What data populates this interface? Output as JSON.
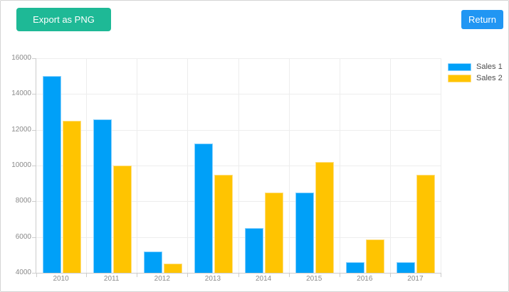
{
  "toolbar": {
    "export_label": "Export as PNG",
    "return_label": "Return"
  },
  "colors": {
    "export_button": "#1EB996",
    "return_button": "#2196F3",
    "series1": "#00A0F8",
    "series1_border": "#8AD2FE",
    "series2": "#FFC401",
    "series2_border": "#FFDF82",
    "grid": "#EDEDED",
    "axis": "#CCCCCC",
    "axis_label": "#8A8A8A",
    "legend_text": "#4C4C4C",
    "widget_border": "#D4D4D4"
  },
  "chart_data": {
    "type": "bar",
    "title": "",
    "xlabel": "",
    "ylabel": "",
    "categories": [
      "2010",
      "2011",
      "2012",
      "2013",
      "2014",
      "2015",
      "2016",
      "2017"
    ],
    "series": [
      {
        "name": "Sales 1",
        "color_key": "series1",
        "border_key": "series1_border",
        "values": [
          15000,
          12600,
          5200,
          11250,
          6500,
          8500,
          4600,
          4600
        ]
      },
      {
        "name": "Sales 2",
        "color_key": "series2",
        "border_key": "series2_border",
        "values": [
          12500,
          10000,
          4500,
          9500,
          8500,
          10200,
          5850,
          9500
        ]
      }
    ],
    "ylim": [
      4000,
      16000
    ],
    "ytick_step": 2000,
    "yticks": [
      4000,
      6000,
      8000,
      10000,
      12000,
      14000,
      16000
    ],
    "grid": true,
    "legend_position": "top-right"
  }
}
